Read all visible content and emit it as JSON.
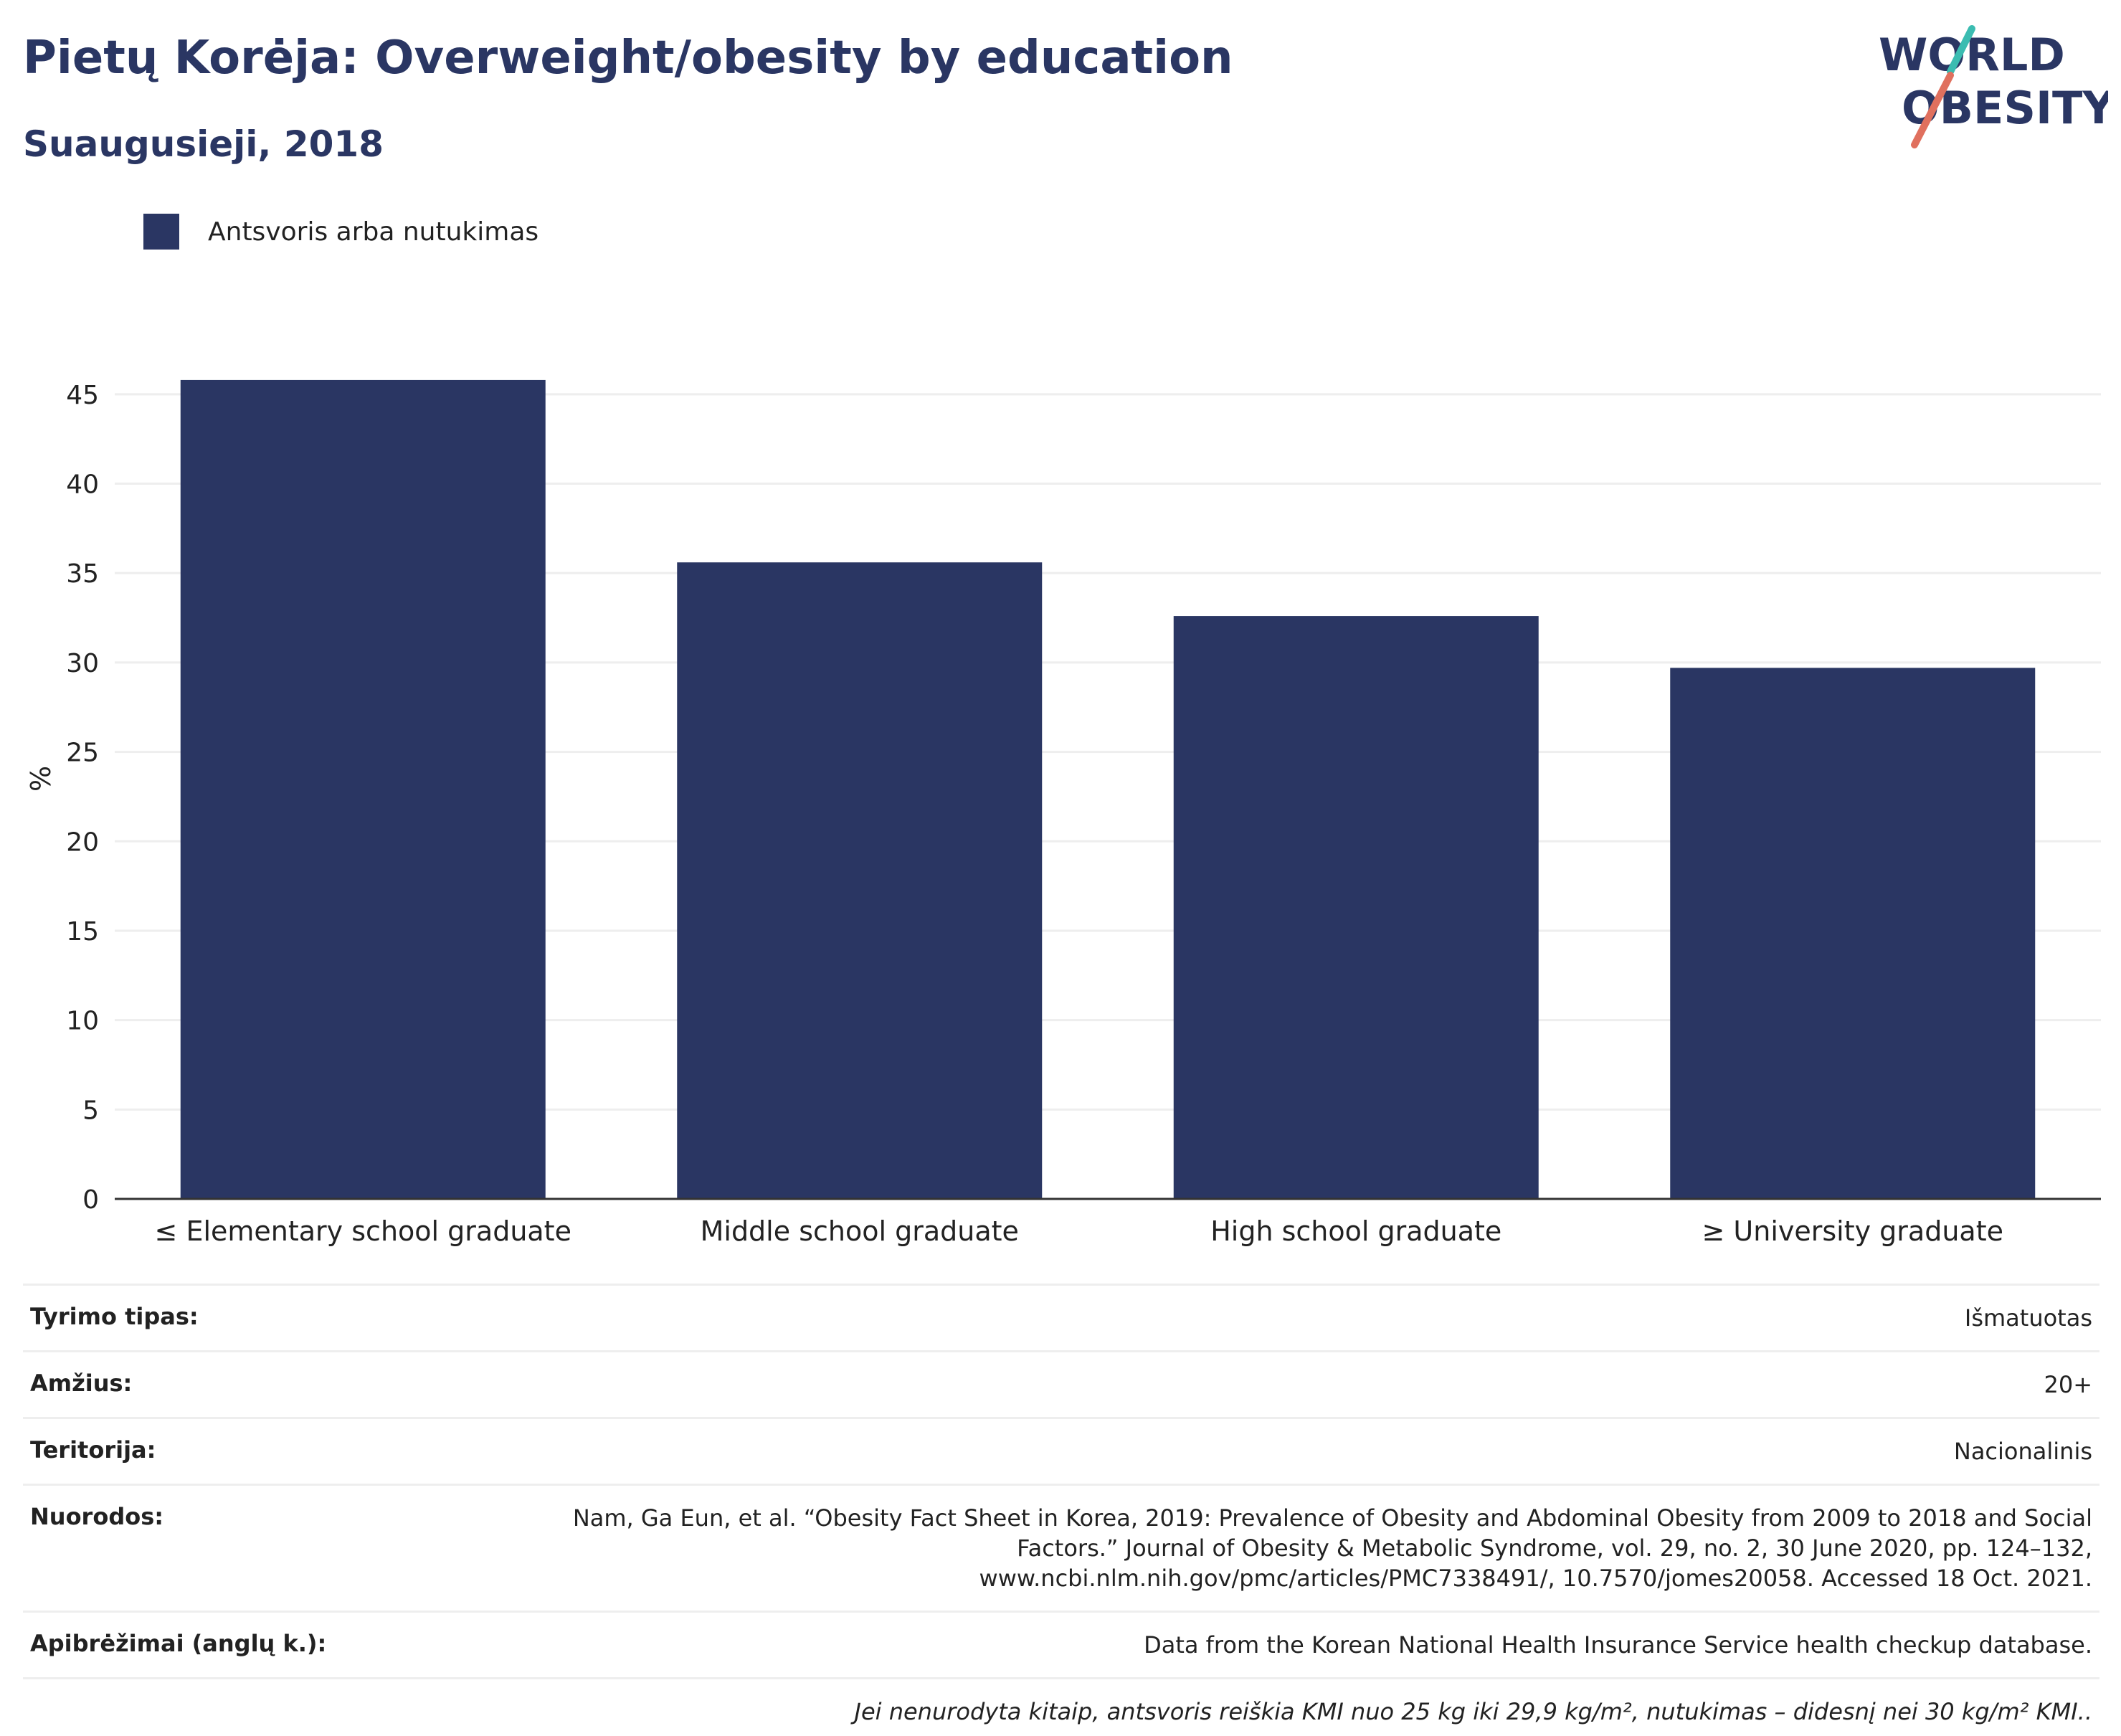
{
  "title": "Pietų Korėja: Overweight/obesity by education",
  "subtitle": "Suaugusieji, 2018",
  "logo": {
    "line1": "WORLD",
    "line2": "OBESITY",
    "stroke_colors": [
      "#3bbcb1",
      "#e0705e"
    ]
  },
  "chart_data": {
    "type": "bar",
    "categories": [
      "≤ Elementary school graduate",
      "Middle school graduate",
      "High school graduate",
      "≥ University graduate"
    ],
    "series": [
      {
        "name": "Antsvoris arba nutukimas",
        "values": [
          45.8,
          35.6,
          32.6,
          29.7
        ],
        "color": "#2a3663"
      }
    ],
    "ylabel": "%",
    "ylim": [
      0,
      47
    ],
    "yticks": [
      0,
      5,
      10,
      15,
      20,
      25,
      30,
      35,
      40,
      45
    ],
    "grid": true,
    "legend": "top-left"
  },
  "info": {
    "rows": [
      {
        "label": "Tyrimo tipas:",
        "value": "Išmatuotas"
      },
      {
        "label": "Amžius:",
        "value": "20+"
      },
      {
        "label": "Teritorija:",
        "value": "Nacionalinis"
      },
      {
        "label": "Nuorodos:",
        "value": "Nam, Ga Eun, et al. “Obesity Fact Sheet in Korea, 2019: Prevalence of Obesity and Abdominal Obesity from 2009 to 2018 and Social Factors.” Journal of Obesity & Metabolic Syndrome, vol. 29, no. 2, 30 June 2020, pp. 124–132, www.ncbi.nlm.nih.gov/pmc/articles/PMC7338491/, 10.7570/jomes20058. Accessed 18 Oct. 2021."
      },
      {
        "label": "Apibrėžimai (anglų k.):",
        "value": "Data from the Korean National Health Insurance Service health checkup database."
      }
    ],
    "note": "Jei nenurodyta kitaip, antsvoris reiškia KMI nuo 25 kg iki 29,9 kg/m², nutukimas – didesnį nei 30 kg/m² KMI.."
  }
}
